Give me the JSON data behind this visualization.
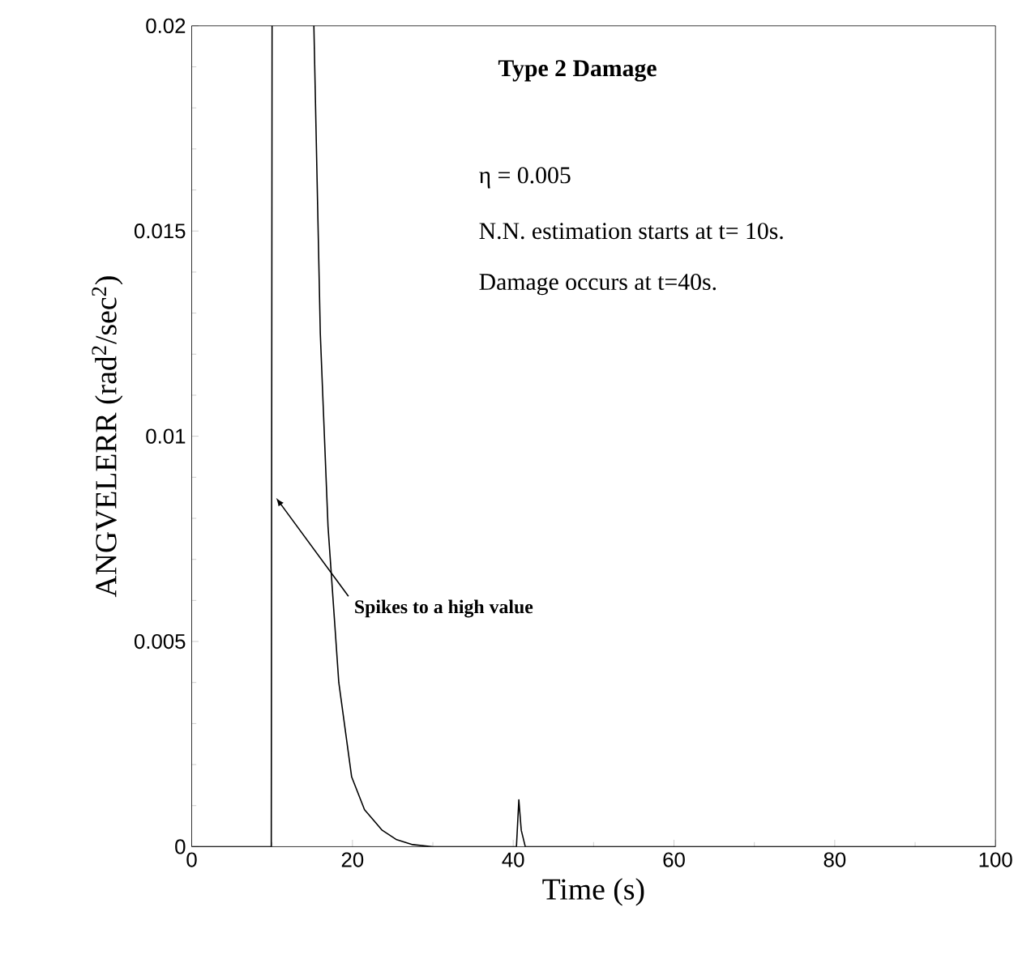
{
  "chart_data": {
    "type": "line",
    "title": "Type 2 Damage",
    "xlabel": "Time (s)",
    "ylabel": "ANGVELERR (rad$^{2}$/sec$^{2}$)",
    "x": [
      0,
      5,
      9.9,
      10,
      12,
      15.2,
      16,
      16.96,
      18.3,
      19.9,
      21.5,
      23.7,
      25.5,
      27.5,
      30,
      35,
      40,
      40.4,
      40.7,
      41.0,
      41.5,
      45,
      50,
      60,
      70,
      80,
      90,
      100
    ],
    "values": [
      0,
      0,
      0,
      0.02,
      null,
      0.02,
      0.0125,
      0.0078,
      0.004,
      0.0017,
      0.0009,
      0.0004,
      0.00017,
      5e-05,
      0,
      0,
      0,
      0,
      0.00114,
      0.0004,
      0,
      0,
      0,
      0,
      0,
      0,
      0,
      0
    ],
    "color": "#000000",
    "marker": "none",
    "line_style": "solid",
    "xlim": [
      0,
      100
    ],
    "ylim": [
      0,
      0.02
    ],
    "xticks": [
      0,
      20,
      40,
      60,
      80,
      100
    ],
    "yticks": [
      0,
      0.005,
      0.01,
      0.015,
      0.02
    ],
    "annotations": [
      "η = 0.005",
      "N.N. estimation starts at t= 10s.",
      "Damage occurs at t=40s.",
      {
        "text": "Spikes to a high value",
        "x": 10.5,
        "y": 0.0085
      }
    ]
  }
}
